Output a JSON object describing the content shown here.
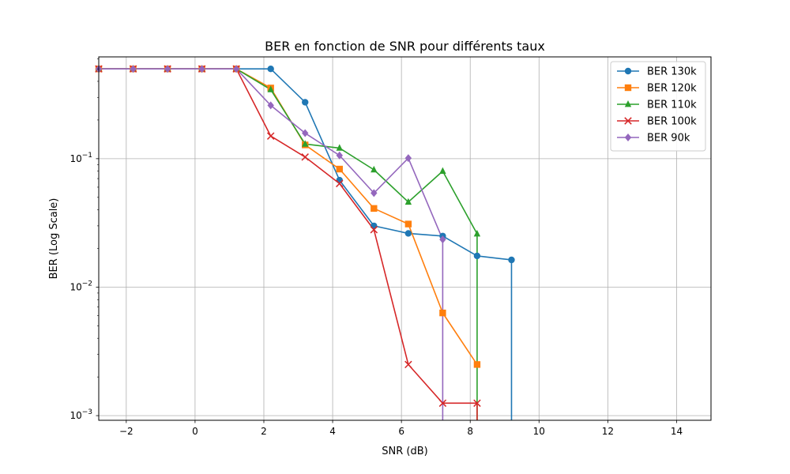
{
  "chart_data": {
    "type": "line",
    "title": "BER en fonction de SNR pour différents taux",
    "xlabel": "SNR (dB)",
    "ylabel": "BER (Log Scale)",
    "xlim": [
      -2.8,
      15.0
    ],
    "ylim": [
      0.00092,
      0.62
    ],
    "yscale": "log",
    "grid": true,
    "legend_position": "top-right",
    "x_ticks": [
      -2,
      0,
      2,
      4,
      6,
      8,
      10,
      12,
      14
    ],
    "x_tick_labels": [
      "−2",
      "0",
      "2",
      "4",
      "6",
      "8",
      "10",
      "12",
      "14"
    ],
    "y_ticks": [
      0.1,
      0.01,
      0.001
    ],
    "y_tick_labels": [
      {
        "base": "10",
        "exp": "−1"
      },
      {
        "base": "10",
        "exp": "−2"
      },
      {
        "base": "10",
        "exp": "−3"
      }
    ],
    "series": [
      {
        "name": "BER 130k",
        "color": "#1f77b4",
        "marker": "circle",
        "x": [
          -2.8,
          -1.8,
          -0.8,
          0.2,
          1.2,
          2.2,
          3.2,
          4.2,
          5.2,
          6.2,
          7.2,
          8.2,
          9.2,
          9.2
        ],
        "y": [
          0.5,
          0.5,
          0.5,
          0.5,
          0.5,
          0.5,
          0.275,
          0.068,
          0.03,
          0.0262,
          0.025,
          0.0175,
          0.0163,
          0.0009
        ],
        "markers": [
          true,
          true,
          true,
          true,
          true,
          true,
          true,
          true,
          true,
          true,
          true,
          true,
          true,
          false
        ]
      },
      {
        "name": "BER 120k",
        "color": "#ff7f0e",
        "marker": "square",
        "x": [
          -2.8,
          -1.8,
          -0.8,
          0.2,
          1.2,
          2.2,
          3.2,
          4.2,
          5.2,
          6.2,
          7.2,
          8.2
        ],
        "y": [
          0.5,
          0.5,
          0.5,
          0.5,
          0.5,
          0.355,
          0.128,
          0.083,
          0.041,
          0.031,
          0.0063,
          0.0025
        ],
        "markers": [
          true,
          true,
          true,
          true,
          true,
          true,
          true,
          true,
          true,
          true,
          true,
          true
        ]
      },
      {
        "name": "BER 110k",
        "color": "#2ca02c",
        "marker": "triangle",
        "x": [
          -2.8,
          -1.8,
          -0.8,
          0.2,
          1.2,
          2.2,
          3.2,
          4.2,
          5.2,
          6.2,
          7.2,
          8.2,
          8.2
        ],
        "y": [
          0.5,
          0.5,
          0.5,
          0.5,
          0.5,
          0.345,
          0.13,
          0.121,
          0.082,
          0.046,
          0.08,
          0.026,
          0.0009
        ],
        "markers": [
          true,
          true,
          true,
          true,
          true,
          true,
          true,
          true,
          true,
          true,
          true,
          true,
          false
        ]
      },
      {
        "name": "BER 100k",
        "color": "#d62728",
        "marker": "x",
        "x": [
          -2.8,
          -1.8,
          -0.8,
          0.2,
          1.2,
          2.2,
          3.2,
          4.2,
          5.2,
          6.2,
          7.2,
          8.2,
          8.2
        ],
        "y": [
          0.5,
          0.5,
          0.5,
          0.5,
          0.5,
          0.15,
          0.103,
          0.064,
          0.028,
          0.0025,
          0.00125,
          0.00125,
          0.0009
        ],
        "markers": [
          true,
          true,
          true,
          true,
          true,
          true,
          true,
          true,
          true,
          true,
          true,
          true,
          false
        ]
      },
      {
        "name": "BER 90k",
        "color": "#9467bd",
        "marker": "diamond",
        "x": [
          -2.8,
          -1.8,
          -0.8,
          0.2,
          1.2,
          2.2,
          3.2,
          4.2,
          5.2,
          6.2,
          7.2,
          7.2
        ],
        "y": [
          0.5,
          0.5,
          0.5,
          0.5,
          0.5,
          0.26,
          0.158,
          0.106,
          0.054,
          0.101,
          0.0235,
          0.0009
        ],
        "markers": [
          true,
          true,
          true,
          true,
          true,
          true,
          true,
          true,
          true,
          true,
          true,
          false
        ]
      }
    ]
  }
}
